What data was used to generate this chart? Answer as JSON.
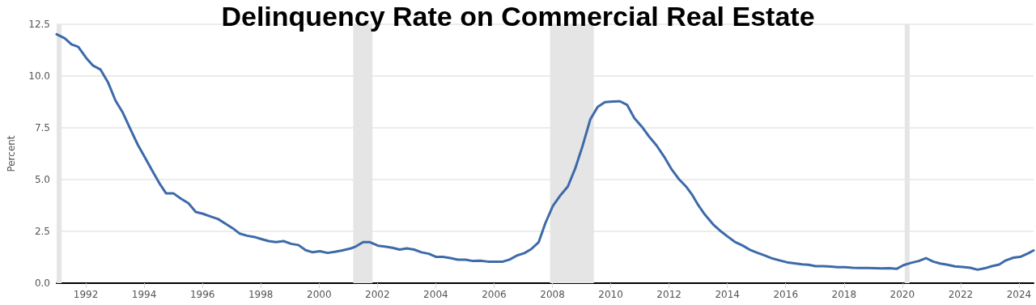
{
  "chart_data": {
    "type": "line",
    "title": "Delinquency Rate on Commercial Real Estate",
    "ylabel": "Percent",
    "x": [
      1991.0,
      1991.28,
      1991.51,
      1991.74,
      1992.02,
      1992.25,
      1992.5,
      1992.76,
      1993.02,
      1993.27,
      1993.5,
      1993.78,
      1994.01,
      1994.29,
      1994.52,
      1994.75,
      1995.0,
      1995.26,
      1995.52,
      1995.77,
      1996.02,
      1996.28,
      1996.53,
      1996.79,
      1997.04,
      1997.28,
      1997.53,
      1997.78,
      1998.02,
      1998.27,
      1998.52,
      1998.78,
      1999.04,
      1999.29,
      1999.54,
      1999.78,
      2000.03,
      2000.29,
      2000.54,
      2000.8,
      2001.09,
      2001.23,
      2001.51,
      2001.74,
      2002.02,
      2002.25,
      2002.51,
      2002.76,
      2003.01,
      2003.26,
      2003.51,
      2003.76,
      2004.0,
      2004.25,
      2004.5,
      2004.76,
      2005.02,
      2005.27,
      2005.53,
      2005.79,
      2006.05,
      2006.3,
      2006.53,
      2006.79,
      2007.04,
      2007.27,
      2007.53,
      2007.76,
      2008.02,
      2008.28,
      2008.53,
      2008.78,
      2009.02,
      2009.3,
      2009.55,
      2009.8,
      2010.07,
      2010.32,
      2010.56,
      2010.81,
      2011.07,
      2011.32,
      2011.57,
      2011.83,
      2012.09,
      2012.34,
      2012.58,
      2012.8,
      2013.0,
      2013.23,
      2013.51,
      2013.79,
      2014.0,
      2014.25,
      2014.53,
      2014.76,
      2015.04,
      2015.27,
      2015.55,
      2015.79,
      2016.04,
      2016.3,
      2016.56,
      2016.78,
      2017.02,
      2017.29,
      2017.55,
      2017.79,
      2018.04,
      2018.3,
      2018.53,
      2018.79,
      2019.04,
      2019.29,
      2019.55,
      2019.8,
      2020.04,
      2020.3,
      2020.56,
      2020.81,
      2021.06,
      2021.3,
      2021.55,
      2021.8,
      2022.07,
      2022.33,
      2022.58,
      2022.83,
      2023.07,
      2023.32,
      2023.55,
      2023.81,
      2024.07,
      2024.33,
      2024.5
    ],
    "series": [
      {
        "color": "#3d6aa8",
        "values": [
          12.02,
          11.82,
          11.53,
          11.41,
          10.86,
          10.5,
          10.32,
          9.7,
          8.81,
          8.23,
          7.52,
          6.69,
          6.11,
          5.4,
          4.83,
          4.34,
          4.34,
          4.08,
          3.86,
          3.44,
          3.35,
          3.22,
          3.1,
          2.87,
          2.65,
          2.39,
          2.29,
          2.23,
          2.13,
          2.03,
          1.98,
          2.03,
          1.9,
          1.84,
          1.59,
          1.49,
          1.54,
          1.46,
          1.51,
          1.58,
          1.68,
          1.75,
          1.98,
          1.98,
          1.81,
          1.77,
          1.71,
          1.62,
          1.68,
          1.62,
          1.49,
          1.42,
          1.27,
          1.27,
          1.21,
          1.13,
          1.13,
          1.07,
          1.08,
          1.04,
          1.04,
          1.04,
          1.14,
          1.34,
          1.45,
          1.64,
          1.98,
          2.9,
          3.74,
          4.25,
          4.67,
          5.53,
          6.56,
          7.91,
          8.51,
          8.74,
          8.77,
          8.78,
          8.61,
          7.97,
          7.55,
          7.07,
          6.65,
          6.11,
          5.49,
          5.02,
          4.67,
          4.25,
          3.77,
          3.31,
          2.84,
          2.49,
          2.26,
          2.0,
          1.81,
          1.62,
          1.46,
          1.34,
          1.19,
          1.1,
          1.01,
          0.96,
          0.91,
          0.89,
          0.82,
          0.82,
          0.8,
          0.77,
          0.77,
          0.74,
          0.73,
          0.73,
          0.72,
          0.71,
          0.72,
          0.69,
          0.87,
          0.98,
          1.07,
          1.21,
          1.04,
          0.95,
          0.89,
          0.81,
          0.78,
          0.74,
          0.65,
          0.72,
          0.82,
          0.9,
          1.1,
          1.23,
          1.28,
          1.45,
          1.58
        ]
      }
    ],
    "xlim": [
      1991,
      2024.5
    ],
    "xticks": [
      1992,
      1994,
      1996,
      1998,
      2000,
      2002,
      2004,
      2006,
      2008,
      2010,
      2012,
      2014,
      2016,
      2018,
      2020,
      2022,
      2024
    ],
    "ylim": [
      0,
      12.5
    ],
    "yticks": [
      {
        "value": 0,
        "label": "0.0"
      },
      2.5,
      {
        "value": 5,
        "label": "5.0"
      },
      7.5,
      {
        "value": 10,
        "label": "10.0"
      },
      12.5
    ],
    "bands": [
      {
        "axis": "x",
        "from": 1991.0,
        "to": 1991.17,
        "color": "#e5e5e5"
      },
      {
        "axis": "x",
        "from": 2001.17,
        "to": 2001.83,
        "color": "#e5e5e5"
      },
      {
        "axis": "x",
        "from": 2007.92,
        "to": 2009.42,
        "color": "#e5e5e5"
      },
      {
        "axis": "x",
        "from": 2020.08,
        "to": 2020.25,
        "color": "#e5e5e5"
      }
    ],
    "grid": "y",
    "marker": "none",
    "line_style": "solid"
  }
}
